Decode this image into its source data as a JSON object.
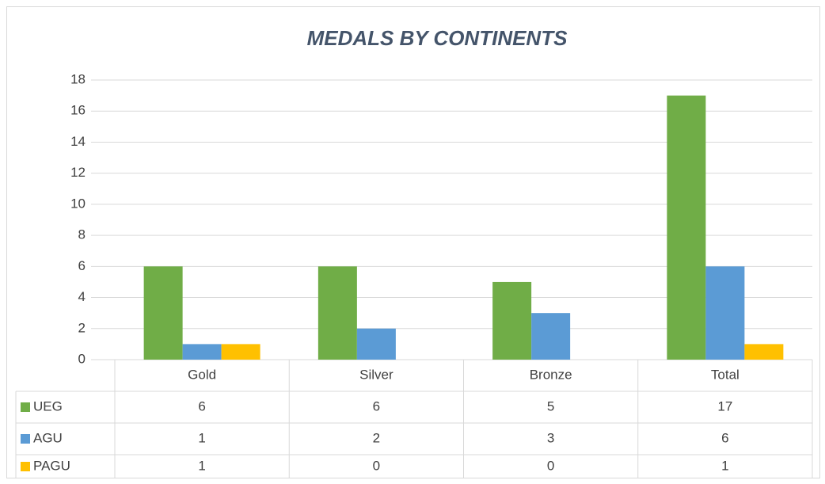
{
  "chart_data": {
    "type": "bar",
    "title": "MEDALS BY CONTINENTS",
    "categories": [
      "Gold",
      "Silver",
      "Bronze",
      "Total"
    ],
    "series": [
      {
        "name": "UEG",
        "color": "#70ad47",
        "values": [
          6,
          6,
          5,
          17
        ]
      },
      {
        "name": "AGU",
        "color": "#5b9bd5",
        "values": [
          1,
          2,
          3,
          6
        ]
      },
      {
        "name": "PAGU",
        "color": "#ffc000",
        "values": [
          1,
          0,
          0,
          1
        ]
      }
    ],
    "ylim": [
      0,
      18
    ],
    "yticks": [
      0,
      2,
      4,
      6,
      8,
      10,
      12,
      14,
      16,
      18
    ],
    "grid": true,
    "data_table": true
  }
}
